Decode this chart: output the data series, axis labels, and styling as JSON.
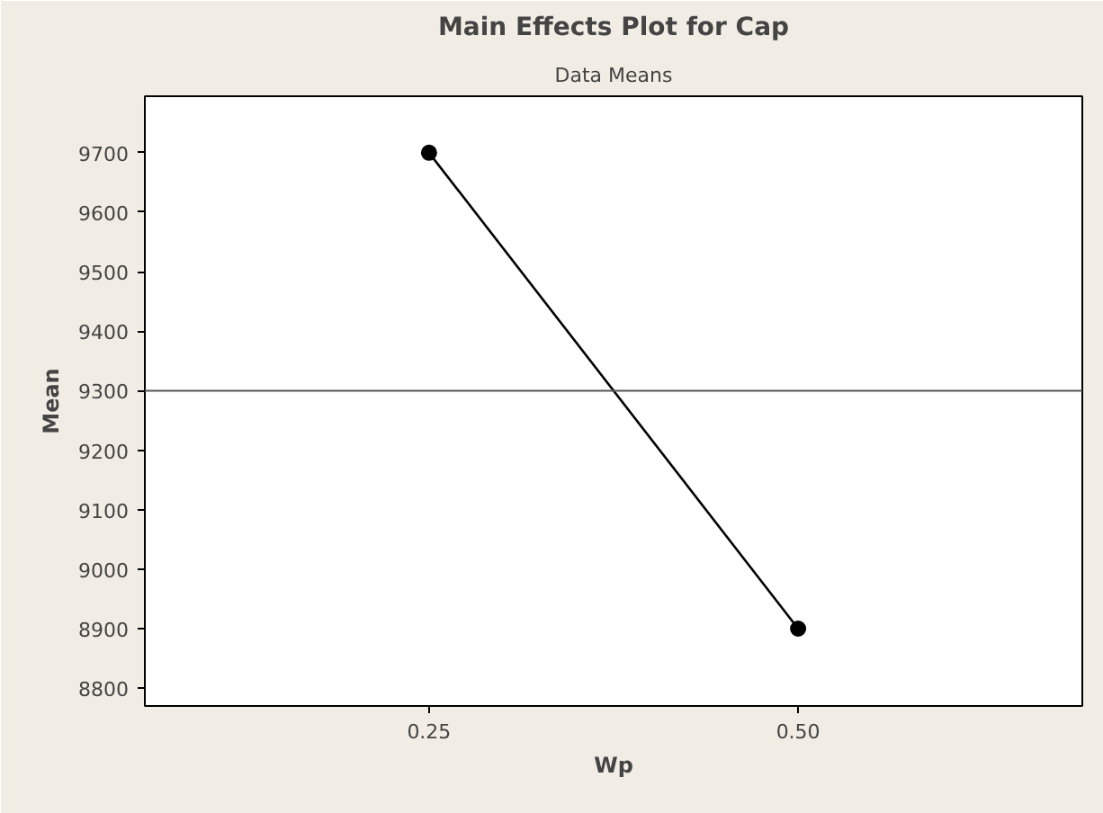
{
  "chart_data": {
    "type": "line",
    "title": "Main Effects Plot for Cap",
    "subtitle": "Data Means",
    "xlabel": "Wp",
    "ylabel": "Mean",
    "categories": [
      "0.25",
      "0.50"
    ],
    "series": [
      {
        "color": "#000000",
        "values": [
          9700,
          8900
        ]
      }
    ],
    "ylim": [
      8770,
      9795
    ],
    "yticks": [
      8800,
      8900,
      9000,
      9100,
      9200,
      9300,
      9400,
      9500,
      9600,
      9700
    ],
    "ref_lines": [
      {
        "axis": "y",
        "value": 9300,
        "color": "#555555"
      }
    ],
    "grid": false,
    "marker": "circle",
    "line_style": "solid"
  }
}
